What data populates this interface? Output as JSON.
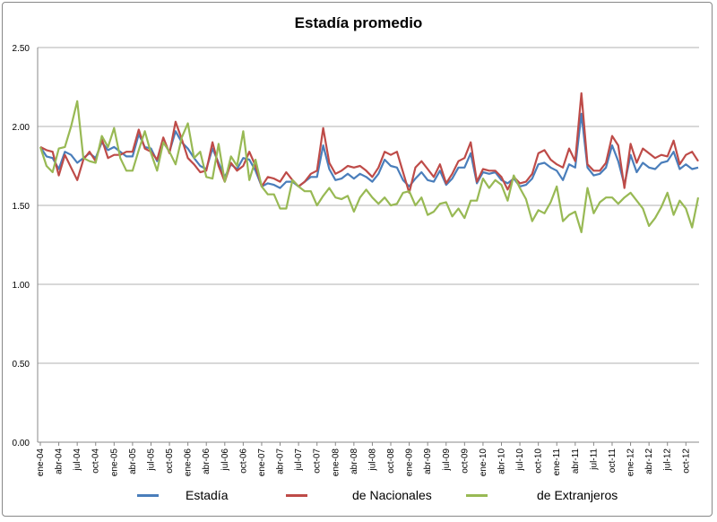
{
  "chart_data": {
    "type": "line",
    "title": "Estadía promedio",
    "xlabel": "",
    "ylabel": "",
    "ylim": [
      0,
      2.5
    ],
    "y_ticks": [
      "0.00",
      "0.50",
      "1.00",
      "1.50",
      "2.00",
      "2.50"
    ],
    "grid": true,
    "legend_position": "bottom",
    "x_frequency": "monthly, ene-04 to dic-12",
    "x_tick_labels": [
      "ene-04",
      "abr-04",
      "jul-04",
      "oct-04",
      "ene-05",
      "abr-05",
      "jul-05",
      "oct-05",
      "ene-06",
      "abr-06",
      "jul-06",
      "oct-06",
      "ene-07",
      "abr-07",
      "jul-07",
      "oct-07",
      "ene-08",
      "abr-08",
      "jul-08",
      "oct-08",
      "ene-09",
      "abr-09",
      "jul-09",
      "oct-09",
      "ene-10",
      "abr-10",
      "jul-10",
      "oct-10",
      "ene-11",
      "abr-11",
      "jul-11",
      "oct-11",
      "ene-12",
      "abr-12",
      "jul-12",
      "oct-12"
    ],
    "series": [
      {
        "name": "Estadía",
        "color": "#4a7ebb",
        "values": [
          1.87,
          1.81,
          1.8,
          1.73,
          1.84,
          1.82,
          1.77,
          1.8,
          1.83,
          1.8,
          1.9,
          1.85,
          1.87,
          1.84,
          1.81,
          1.81,
          1.95,
          1.87,
          1.86,
          1.78,
          1.9,
          1.84,
          1.97,
          1.9,
          1.86,
          1.8,
          1.75,
          1.73,
          1.86,
          1.77,
          1.68,
          1.76,
          1.73,
          1.8,
          1.79,
          1.72,
          1.62,
          1.64,
          1.63,
          1.61,
          1.65,
          1.65,
          1.62,
          1.65,
          1.68,
          1.68,
          1.88,
          1.73,
          1.66,
          1.67,
          1.7,
          1.67,
          1.7,
          1.68,
          1.65,
          1.7,
          1.79,
          1.75,
          1.74,
          1.66,
          1.62,
          1.67,
          1.71,
          1.66,
          1.65,
          1.72,
          1.63,
          1.67,
          1.74,
          1.74,
          1.83,
          1.64,
          1.71,
          1.7,
          1.71,
          1.66,
          1.64,
          1.67,
          1.62,
          1.63,
          1.67,
          1.76,
          1.77,
          1.74,
          1.72,
          1.66,
          1.76,
          1.74,
          2.08,
          1.74,
          1.69,
          1.7,
          1.74,
          1.88,
          1.78,
          1.63,
          1.82,
          1.71,
          1.77,
          1.74,
          1.73,
          1.77,
          1.78,
          1.84,
          1.73,
          1.76,
          1.73,
          1.74
        ]
      },
      {
        "name": "de Nacionales",
        "color": "#be4b48",
        "values": [
          1.87,
          1.85,
          1.84,
          1.69,
          1.82,
          1.74,
          1.66,
          1.79,
          1.84,
          1.78,
          1.92,
          1.8,
          1.82,
          1.82,
          1.84,
          1.84,
          1.98,
          1.86,
          1.84,
          1.79,
          1.93,
          1.83,
          2.03,
          1.92,
          1.8,
          1.76,
          1.71,
          1.72,
          1.9,
          1.75,
          1.65,
          1.77,
          1.72,
          1.75,
          1.84,
          1.75,
          1.62,
          1.68,
          1.67,
          1.65,
          1.71,
          1.66,
          1.62,
          1.65,
          1.7,
          1.72,
          1.99,
          1.77,
          1.7,
          1.72,
          1.75,
          1.74,
          1.75,
          1.72,
          1.68,
          1.74,
          1.84,
          1.82,
          1.84,
          1.71,
          1.58,
          1.74,
          1.78,
          1.73,
          1.68,
          1.76,
          1.64,
          1.7,
          1.78,
          1.8,
          1.9,
          1.65,
          1.73,
          1.72,
          1.72,
          1.68,
          1.6,
          1.68,
          1.64,
          1.65,
          1.7,
          1.83,
          1.85,
          1.79,
          1.76,
          1.74,
          1.86,
          1.78,
          2.21,
          1.76,
          1.72,
          1.72,
          1.77,
          1.94,
          1.88,
          1.61,
          1.89,
          1.77,
          1.86,
          1.83,
          1.8,
          1.82,
          1.81,
          1.91,
          1.76,
          1.82,
          1.84,
          1.78
        ]
      },
      {
        "name": "de Extranjeros",
        "color": "#98b954",
        "values": [
          1.87,
          1.75,
          1.71,
          1.86,
          1.87,
          2.0,
          2.16,
          1.8,
          1.78,
          1.77,
          1.94,
          1.87,
          1.99,
          1.8,
          1.72,
          1.72,
          1.85,
          1.97,
          1.83,
          1.72,
          1.9,
          1.84,
          1.76,
          1.93,
          2.02,
          1.8,
          1.84,
          1.68,
          1.67,
          1.89,
          1.65,
          1.81,
          1.75,
          1.97,
          1.66,
          1.79,
          1.62,
          1.57,
          1.57,
          1.48,
          1.48,
          1.66,
          1.62,
          1.59,
          1.59,
          1.5,
          1.56,
          1.61,
          1.55,
          1.54,
          1.56,
          1.46,
          1.55,
          1.6,
          1.55,
          1.51,
          1.55,
          1.5,
          1.51,
          1.58,
          1.59,
          1.5,
          1.55,
          1.44,
          1.46,
          1.51,
          1.52,
          1.43,
          1.48,
          1.42,
          1.53,
          1.53,
          1.67,
          1.61,
          1.66,
          1.63,
          1.53,
          1.69,
          1.61,
          1.54,
          1.4,
          1.47,
          1.45,
          1.52,
          1.62,
          1.4,
          1.44,
          1.46,
          1.33,
          1.61,
          1.45,
          1.52,
          1.55,
          1.55,
          1.51,
          1.55,
          1.58,
          1.53,
          1.48,
          1.37,
          1.42,
          1.49,
          1.58,
          1.44,
          1.53,
          1.48,
          1.36,
          1.55
        ]
      }
    ]
  }
}
